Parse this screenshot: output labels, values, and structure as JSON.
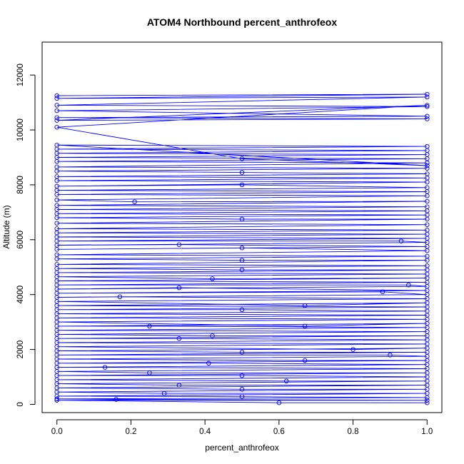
{
  "chart_data": {
    "type": "line",
    "title": "ATOM4 Northbound percent_anthrofeox",
    "xlabel": "percent_anthrofeox",
    "ylabel": "Altitude (m)",
    "xlim": [
      -0.04,
      1.04
    ],
    "ylim": [
      -300,
      13200
    ],
    "x_ticks": [
      0.0,
      0.2,
      0.4,
      0.6,
      0.8,
      1.0
    ],
    "x_tick_labels": [
      "0.0",
      "0.2",
      "0.4",
      "0.6",
      "0.8",
      "1.0"
    ],
    "y_ticks": [
      0,
      2000,
      4000,
      6000,
      8000,
      10000,
      12000
    ],
    "y_tick_labels": [
      "0",
      "2000",
      "4000",
      "6000",
      "8000",
      "10000",
      "12000"
    ],
    "grid": false,
    "legend": "none",
    "series": [
      {
        "color": "#0000ff",
        "marker": "open-circle",
        "line": true,
        "points": [
          [
            0.0,
            11250
          ],
          [
            1.0,
            11300
          ],
          [
            0.0,
            11150
          ],
          [
            1.0,
            11200
          ],
          [
            0.0,
            10900
          ],
          [
            1.0,
            10850
          ],
          [
            0.0,
            10700
          ],
          [
            1.0,
            10500
          ],
          [
            0.0,
            10450
          ],
          [
            1.0,
            10400
          ],
          [
            0.0,
            10350
          ],
          [
            1.0,
            10900
          ],
          [
            0.0,
            10100
          ],
          [
            0.5,
            8950
          ],
          [
            1.0,
            8700
          ],
          [
            0.0,
            9450
          ],
          [
            1.0,
            9400
          ],
          [
            0.0,
            9300
          ],
          [
            1.0,
            9250
          ],
          [
            0.0,
            9150
          ],
          [
            1.0,
            9100
          ],
          [
            0.0,
            9000
          ],
          [
            1.0,
            8950
          ],
          [
            0.0,
            8850
          ],
          [
            1.0,
            8800
          ],
          [
            0.0,
            8650
          ],
          [
            1.0,
            8600
          ],
          [
            0.0,
            8500
          ],
          [
            0.5,
            8450
          ],
          [
            1.0,
            8400
          ],
          [
            0.0,
            8300
          ],
          [
            1.0,
            8250
          ],
          [
            0.0,
            8150
          ],
          [
            1.0,
            8100
          ],
          [
            0.0,
            7950
          ],
          [
            0.5,
            8000
          ],
          [
            1.0,
            7900
          ],
          [
            0.0,
            7800
          ],
          [
            1.0,
            7750
          ],
          [
            0.0,
            7650
          ],
          [
            1.0,
            7600
          ],
          [
            0.0,
            7450
          ],
          [
            0.21,
            7380
          ],
          [
            1.0,
            7400
          ],
          [
            0.0,
            7250
          ],
          [
            1.0,
            7200
          ],
          [
            0.0,
            7100
          ],
          [
            1.0,
            7050
          ],
          [
            0.0,
            6950
          ],
          [
            1.0,
            6900
          ],
          [
            0.0,
            6800
          ],
          [
            0.5,
            6750
          ],
          [
            1.0,
            6750
          ],
          [
            0.0,
            6600
          ],
          [
            1.0,
            6550
          ],
          [
            0.0,
            6400
          ],
          [
            1.0,
            6350
          ],
          [
            0.0,
            6250
          ],
          [
            1.0,
            6200
          ],
          [
            0.0,
            6100
          ],
          [
            1.0,
            6050
          ],
          [
            0.0,
            5950
          ],
          [
            0.93,
            5950
          ],
          [
            1.0,
            5900
          ],
          [
            0.0,
            5800
          ],
          [
            0.33,
            5820
          ],
          [
            1.0,
            5750
          ],
          [
            0.0,
            5650
          ],
          [
            0.5,
            5700
          ],
          [
            1.0,
            5600
          ],
          [
            0.0,
            5450
          ],
          [
            1.0,
            5400
          ],
          [
            0.0,
            5300
          ],
          [
            0.5,
            5250
          ],
          [
            1.0,
            5250
          ],
          [
            0.0,
            5100
          ],
          [
            1.0,
            5050
          ],
          [
            0.0,
            4950
          ],
          [
            0.5,
            4900
          ],
          [
            1.0,
            4900
          ],
          [
            0.0,
            4800
          ],
          [
            1.0,
            4750
          ],
          [
            0.0,
            4650
          ],
          [
            0.42,
            4580
          ],
          [
            1.0,
            4600
          ],
          [
            0.0,
            4500
          ],
          [
            1.0,
            4450
          ],
          [
            0.0,
            4350
          ],
          [
            0.95,
            4350
          ],
          [
            1.0,
            4300
          ],
          [
            0.0,
            4200
          ],
          [
            0.33,
            4250
          ],
          [
            1.0,
            4150
          ],
          [
            0.0,
            4050
          ],
          [
            0.88,
            4100
          ],
          [
            1.0,
            4000
          ],
          [
            0.0,
            3900
          ],
          [
            0.17,
            3920
          ],
          [
            1.0,
            3850
          ],
          [
            0.0,
            3750
          ],
          [
            0.67,
            3600
          ],
          [
            1.0,
            3700
          ],
          [
            0.0,
            3600
          ],
          [
            1.0,
            3550
          ],
          [
            0.0,
            3450
          ],
          [
            0.5,
            3450
          ],
          [
            1.0,
            3400
          ],
          [
            0.0,
            3300
          ],
          [
            1.0,
            3250
          ],
          [
            0.0,
            3150
          ],
          [
            1.0,
            3100
          ],
          [
            0.0,
            3000
          ],
          [
            0.67,
            2850
          ],
          [
            1.0,
            2950
          ],
          [
            0.0,
            2850
          ],
          [
            0.25,
            2850
          ],
          [
            1.0,
            2800
          ],
          [
            0.0,
            2700
          ],
          [
            1.0,
            2650
          ],
          [
            0.0,
            2550
          ],
          [
            0.42,
            2500
          ],
          [
            1.0,
            2500
          ],
          [
            0.0,
            2400
          ],
          [
            0.33,
            2400
          ],
          [
            1.0,
            2350
          ],
          [
            0.0,
            2250
          ],
          [
            1.0,
            2200
          ],
          [
            0.0,
            2100
          ],
          [
            0.8,
            2000
          ],
          [
            1.0,
            2050
          ],
          [
            0.0,
            1950
          ],
          [
            0.5,
            1900
          ],
          [
            1.0,
            1900
          ],
          [
            0.0,
            1800
          ],
          [
            0.9,
            1800
          ],
          [
            1.0,
            1750
          ],
          [
            0.0,
            1650
          ],
          [
            0.67,
            1600
          ],
          [
            1.0,
            1600
          ],
          [
            0.0,
            1500
          ],
          [
            0.41,
            1500
          ],
          [
            1.0,
            1450
          ],
          [
            0.0,
            1350
          ],
          [
            0.13,
            1350
          ],
          [
            1.0,
            1300
          ],
          [
            0.0,
            1200
          ],
          [
            0.25,
            1150
          ],
          [
            1.0,
            1150
          ],
          [
            0.0,
            1050
          ],
          [
            0.5,
            1050
          ],
          [
            1.0,
            1000
          ],
          [
            0.0,
            900
          ],
          [
            0.62,
            850
          ],
          [
            1.0,
            850
          ],
          [
            0.0,
            750
          ],
          [
            0.33,
            700
          ],
          [
            1.0,
            700
          ],
          [
            0.0,
            600
          ],
          [
            0.5,
            550
          ],
          [
            1.0,
            550
          ],
          [
            0.0,
            450
          ],
          [
            0.29,
            400
          ],
          [
            1.0,
            400
          ],
          [
            0.0,
            300
          ],
          [
            0.5,
            280
          ],
          [
            1.0,
            250
          ],
          [
            0.0,
            200
          ],
          [
            0.16,
            180
          ],
          [
            1.0,
            150
          ],
          [
            0.0,
            150
          ],
          [
            0.6,
            60
          ],
          [
            1.0,
            60
          ]
        ]
      }
    ]
  }
}
